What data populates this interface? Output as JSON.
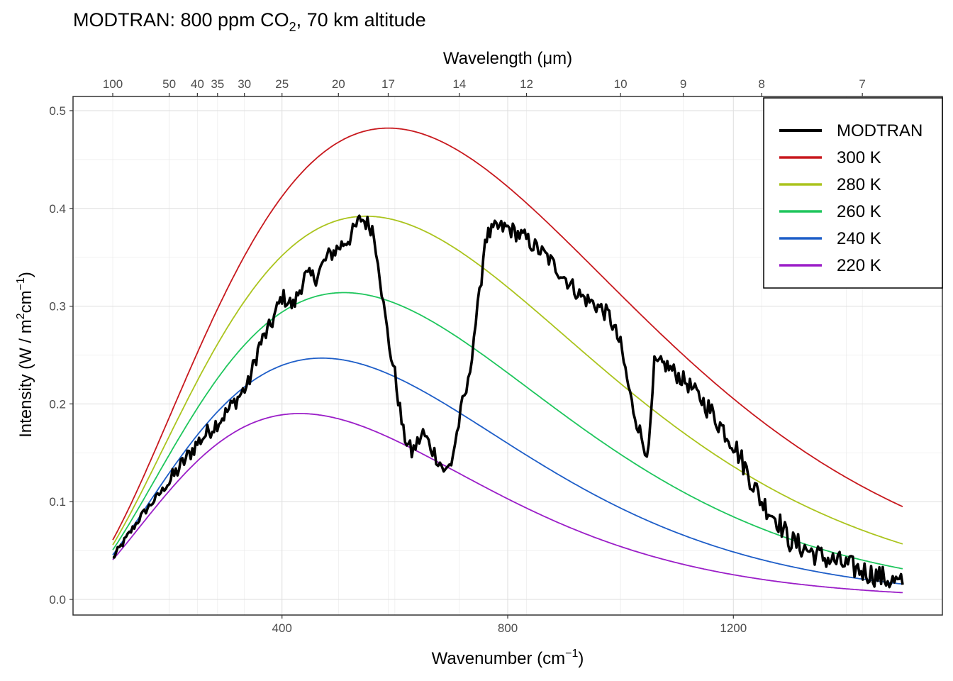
{
  "chart_data": {
    "type": "line",
    "title": "MODTRAN: 800 ppm CO",
    "title_sub": "2",
    "title_rest": ", 70 km altitude",
    "xlabel": "Wavenumber (cm",
    "xlabel_sup": "−1",
    "xlabel_close": ")",
    "x2label": "Wavelength (μm)",
    "ylabel": "Intensity (W / m",
    "ylabel_sup1": "2",
    "ylabel_mid": "cm",
    "ylabel_sup2": "−1",
    "ylabel_close": ")",
    "xlim": [
      100,
      1500
    ],
    "ylim": [
      0,
      0.5
    ],
    "x_ticks": [
      400,
      800,
      1200
    ],
    "x_tick_labels": [
      "400",
      "800",
      "1200"
    ],
    "y_ticks": [
      0.0,
      0.1,
      0.2,
      0.3,
      0.4,
      0.5
    ],
    "y_tick_labels": [
      "0.0",
      "0.1",
      "0.2",
      "0.3",
      "0.4",
      "0.5"
    ],
    "x2_ticks": [
      100,
      50,
      40,
      35,
      30,
      25,
      20,
      17,
      14,
      12,
      10,
      9,
      8,
      7
    ],
    "x2_tick_labels": [
      "100",
      "50",
      "40",
      "35",
      "30",
      "25",
      "20",
      "17",
      "14",
      "12",
      "10",
      "9",
      "8",
      "7"
    ],
    "grid": true,
    "legend_position": "top-right",
    "blackbody_series": [
      {
        "name": "300 K",
        "temperature": 300,
        "color": "#c8191e"
      },
      {
        "name": "280 K",
        "temperature": 280,
        "color": "#abc41e"
      },
      {
        "name": "260 K",
        "temperature": 260,
        "color": "#1fc65d"
      },
      {
        "name": "240 K",
        "temperature": 240,
        "color": "#1e5ec8"
      },
      {
        "name": "220 K",
        "temperature": 220,
        "color": "#9b1ec8"
      }
    ],
    "modtran_series": {
      "name": "MODTRAN",
      "color": "#000000",
      "x": [
        100,
        150,
        200,
        250,
        300,
        340,
        360,
        380,
        400,
        420,
        440,
        460,
        480,
        500,
        520,
        540,
        560,
        570,
        580,
        590,
        600,
        615,
        630,
        640,
        650,
        660,
        670,
        680,
        690,
        700,
        710,
        720,
        730,
        740,
        750,
        760,
        780,
        800,
        830,
        870,
        900,
        930,
        960,
        980,
        1000,
        1020,
        1040,
        1050,
        1060,
        1080,
        1100,
        1120,
        1150,
        1200,
        1250,
        1280,
        1300,
        1350,
        1400,
        1450,
        1500
      ],
      "y": [
        0.042,
        0.085,
        0.12,
        0.16,
        0.19,
        0.22,
        0.26,
        0.28,
        0.31,
        0.3,
        0.33,
        0.33,
        0.35,
        0.36,
        0.37,
        0.39,
        0.38,
        0.35,
        0.3,
        0.26,
        0.23,
        0.17,
        0.15,
        0.16,
        0.17,
        0.16,
        0.15,
        0.14,
        0.13,
        0.14,
        0.17,
        0.2,
        0.22,
        0.27,
        0.31,
        0.37,
        0.38,
        0.38,
        0.37,
        0.35,
        0.33,
        0.31,
        0.3,
        0.29,
        0.26,
        0.2,
        0.16,
        0.15,
        0.24,
        0.24,
        0.23,
        0.22,
        0.2,
        0.16,
        0.1,
        0.08,
        0.06,
        0.045,
        0.035,
        0.025,
        0.015
      ]
    }
  }
}
